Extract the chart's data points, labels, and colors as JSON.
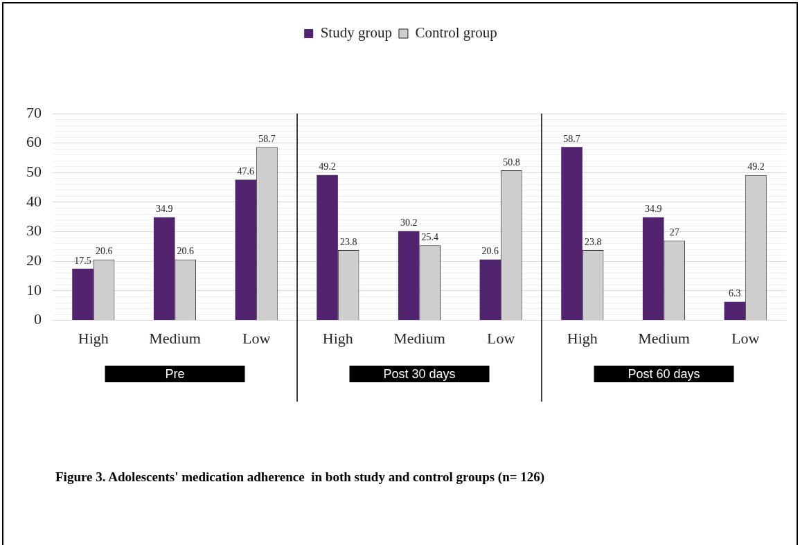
{
  "chart_data": {
    "type": "bar",
    "categories": [
      "High",
      "Medium",
      "Low",
      "High",
      "Medium",
      "Low",
      "High",
      "Medium",
      "Low"
    ],
    "series": [
      {
        "name": "Study group",
        "color": "#52236f",
        "values": [
          17.5,
          34.9,
          47.6,
          49.2,
          30.2,
          20.6,
          58.7,
          34.9,
          6.3
        ]
      },
      {
        "name": "Control group",
        "color": "#d0cecf",
        "values": [
          20.6,
          20.6,
          58.7,
          23.8,
          25.4,
          50.8,
          23.8,
          27,
          49.2
        ]
      }
    ],
    "ylim": [
      0,
      70
    ],
    "yticks": [
      0,
      {
        "value": 2,
        "label": null
      },
      {
        "value": 4,
        "label": null
      },
      {
        "value": 6,
        "label": null
      },
      {
        "value": 8,
        "label": null
      },
      10,
      {
        "value": 12,
        "label": null
      },
      {
        "value": 14,
        "label": null
      },
      {
        "value": 16,
        "label": null
      },
      {
        "value": 18,
        "label": null
      },
      20,
      {
        "value": 22,
        "label": null
      },
      {
        "value": 24,
        "label": null
      },
      {
        "value": 26,
        "label": null
      },
      {
        "value": 28,
        "label": null
      },
      30,
      {
        "value": 32,
        "label": null
      },
      {
        "value": 34,
        "label": null
      },
      {
        "value": 36,
        "label": null
      },
      {
        "value": 38,
        "label": null
      },
      40,
      {
        "value": 42,
        "label": null
      },
      {
        "value": 44,
        "label": null
      },
      {
        "value": 46,
        "label": null
      },
      {
        "value": 48,
        "label": null
      },
      50,
      {
        "value": 52,
        "label": null
      },
      {
        "value": 54,
        "label": null
      },
      {
        "value": 56,
        "label": null
      },
      {
        "value": 58,
        "label": null
      },
      60,
      {
        "value": 62,
        "label": null
      },
      {
        "value": 64,
        "label": null
      },
      {
        "value": 66,
        "label": null
      },
      {
        "value": 68,
        "label": null
      },
      70
    ],
    "grid": "y",
    "legend": "top",
    "data_labels": true,
    "annotations": [
      "Pre",
      "Post 30 days",
      "Post 60 days",
      "Figure 3. Adolescents' medication adherence  in both study and control groups (n= 126)"
    ]
  }
}
